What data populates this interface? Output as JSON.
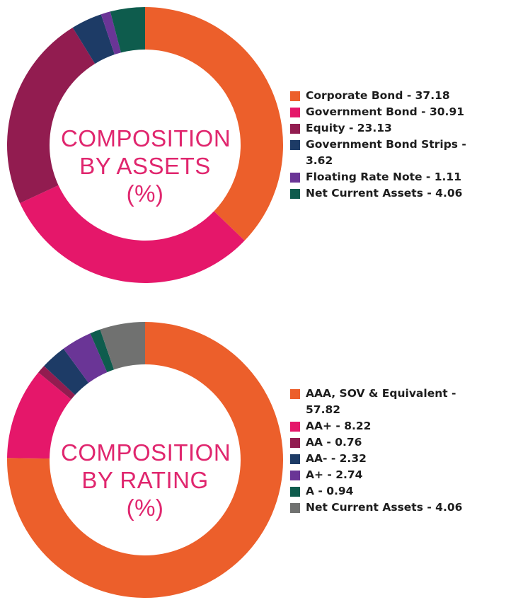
{
  "colors": {
    "orange": "#ec5f2b",
    "pink": "#e5176a",
    "maroon": "#921c50",
    "navy": "#1d3b66",
    "purple": "#6a3596",
    "teal": "#0e5c4d",
    "gray": "#707170",
    "title": "#e0266e"
  },
  "chart_data": [
    {
      "type": "pie",
      "donut": true,
      "center_title": [
        "COMPOSITION",
        "BY ASSETS",
        "(%)"
      ],
      "start_angle_deg": 0,
      "direction": "clockwise",
      "slices": [
        {
          "label": "Corporate Bond - 37.18",
          "value": 37.18,
          "color": "#ec5f2b"
        },
        {
          "label": "Government Bond - 30.91",
          "value": 30.91,
          "color": "#e5176a"
        },
        {
          "label": "Equity - 23.13",
          "value": 23.13,
          "color": "#921c50"
        },
        {
          "label": "Government Bond Strips - 3.62",
          "value": 3.62,
          "color": "#1d3b66"
        },
        {
          "label": "Floating Rate Note - 1.11",
          "value": 1.11,
          "color": "#6a3596"
        },
        {
          "label": "Net Current Assets - 4.06",
          "value": 4.06,
          "color": "#0e5c4d"
        }
      ],
      "legend_position": "right"
    },
    {
      "type": "pie",
      "donut": true,
      "center_title": [
        "COMPOSITION",
        "BY RATING",
        "(%)"
      ],
      "start_angle_deg": 0,
      "direction": "clockwise",
      "slices": [
        {
          "label": "AAA, SOV & Equivalent - 57.82",
          "value": 57.82,
          "color": "#ec5f2b"
        },
        {
          "label": "AA+ - 8.22",
          "value": 8.22,
          "color": "#e5176a"
        },
        {
          "label": "AA - 0.76",
          "value": 0.76,
          "color": "#921c50"
        },
        {
          "label": "AA- - 2.32",
          "value": 2.32,
          "color": "#1d3b66"
        },
        {
          "label": "A+ - 2.74",
          "value": 2.74,
          "color": "#6a3596"
        },
        {
          "label": "A - 0.94",
          "value": 0.94,
          "color": "#0e5c4d"
        },
        {
          "label": "Net Current Assets - 4.06",
          "value": 4.06,
          "color": "#707170"
        }
      ],
      "legend_position": "right"
    }
  ]
}
